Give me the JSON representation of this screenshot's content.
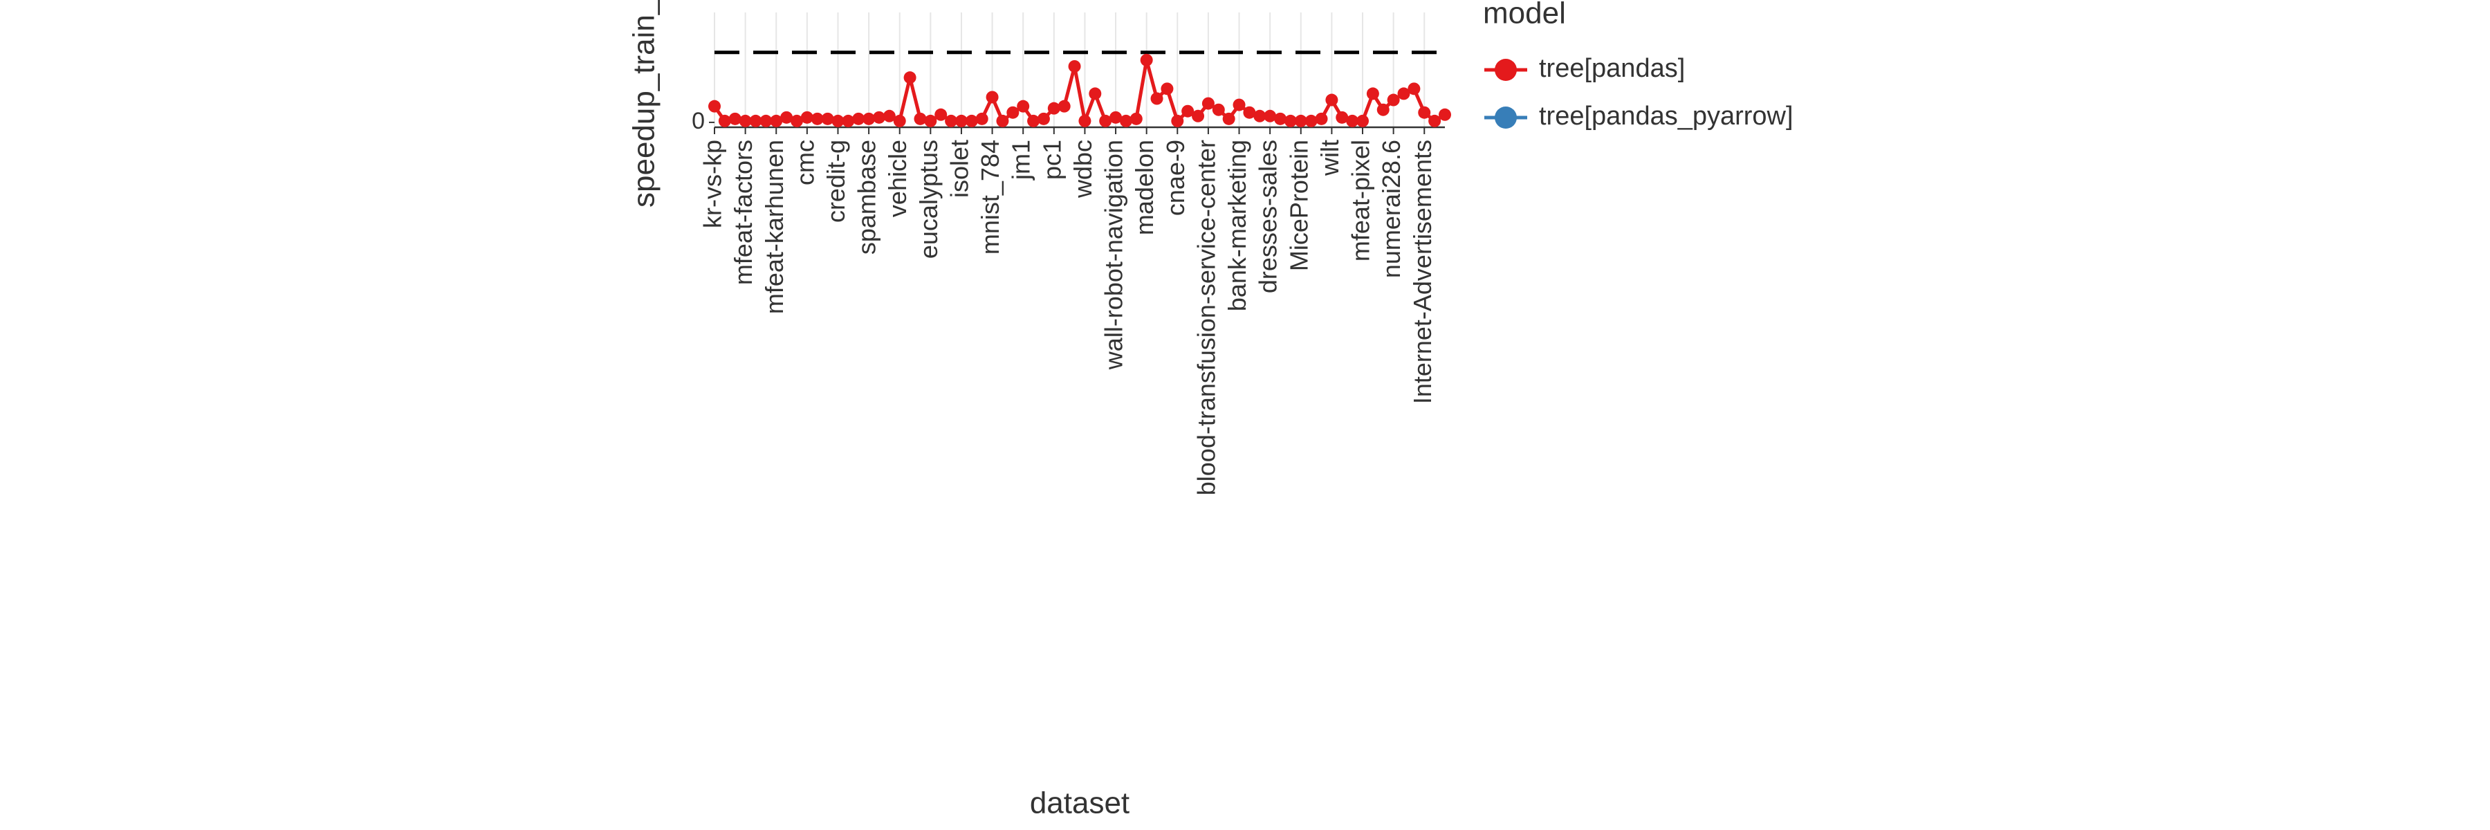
{
  "chart_data": {
    "type": "line",
    "y_label": "speedup_train_",
    "x_label": "dataset",
    "legend_title": "model",
    "categories": [
      "kr-vs-kp",
      null,
      null,
      "mfeat-factors",
      null,
      null,
      "mfeat-karhunen",
      null,
      null,
      "cmc",
      null,
      null,
      "credit-g",
      null,
      null,
      "spambase",
      null,
      null,
      "vehicle",
      null,
      null,
      "eucalyptus",
      null,
      null,
      "isolet",
      null,
      null,
      "mnist_784",
      null,
      null,
      "jm1",
      null,
      null,
      "pc1",
      null,
      null,
      "wdbc",
      null,
      null,
      "wall-robot-navigation",
      null,
      null,
      "madelon",
      null,
      null,
      "cnae-9",
      null,
      null,
      "blood-transfusion-service-center",
      null,
      null,
      "bank-marketing",
      null,
      null,
      "dresses-sales",
      null,
      null,
      "MiceProtein",
      null,
      null,
      "wilt",
      null,
      null,
      "mfeat-pixel",
      null,
      null,
      "numerai28.6",
      null,
      null,
      "Internet-Advertisements",
      null,
      null
    ],
    "series": [
      {
        "name": "tree[pandas]",
        "color": "#e41a1c",
        "values": [
          0.23,
          0.02,
          0.05,
          0.02,
          0.02,
          0.02,
          0.02,
          0.07,
          0.02,
          0.07,
          0.05,
          0.05,
          0.02,
          0.02,
          0.05,
          0.05,
          0.07,
          0.09,
          0.02,
          0.64,
          0.05,
          0.02,
          0.11,
          0.02,
          0.02,
          0.02,
          0.05,
          0.36,
          0.02,
          0.14,
          0.23,
          0.02,
          0.05,
          0.2,
          0.23,
          0.8,
          0.02,
          0.41,
          0.02,
          0.07,
          0.02,
          0.05,
          0.89,
          0.34,
          0.48,
          0.02,
          0.16,
          0.09,
          0.27,
          0.18,
          0.05,
          0.25,
          0.14,
          0.09,
          0.09,
          0.05,
          0.02,
          0.02,
          0.02,
          0.05,
          0.32,
          0.07,
          0.02,
          0.02,
          0.41,
          0.18,
          0.32,
          0.41,
          0.48,
          0.14,
          0.02,
          0.11
        ]
      },
      {
        "name": "tree[pandas_pyarrow]",
        "color": "#377eb8"
      }
    ],
    "reference_line": 1,
    "ylim": [
      -0.07,
      1.57
    ],
    "yticks": [
      0
    ],
    "grid": true
  }
}
